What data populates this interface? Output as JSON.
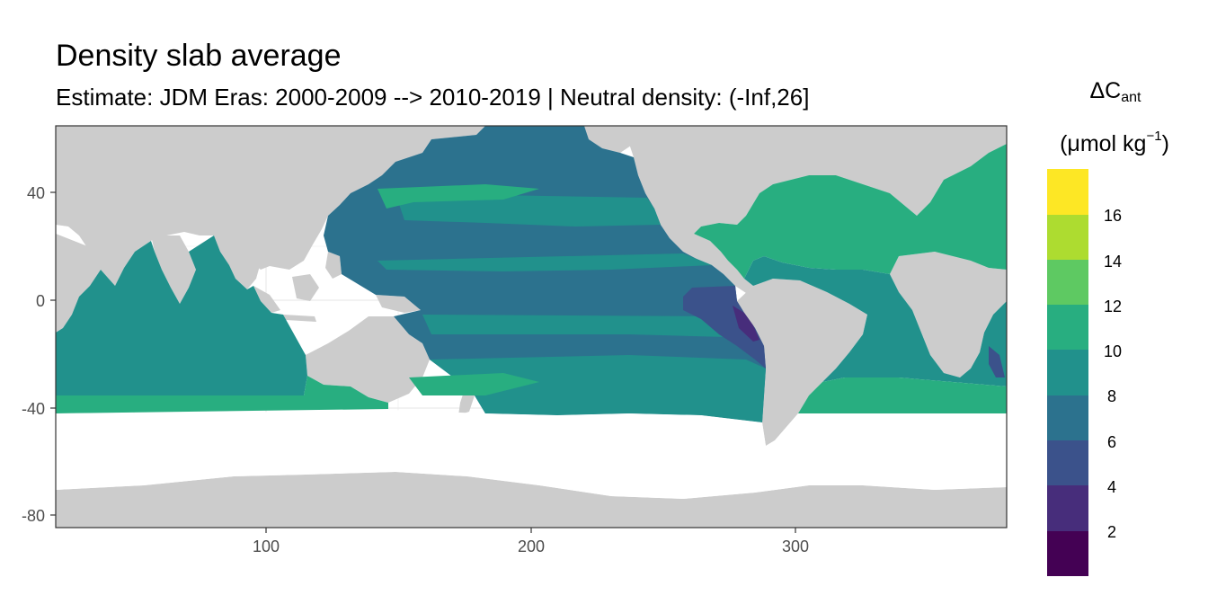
{
  "title": "Density slab average",
  "subtitle": "Estimate: JDM Eras: 2000-2009 --> 2010-2019 | Neutral density: (-Inf,26]",
  "legend": {
    "symbol": "ΔC",
    "subscript": "ant",
    "unit_prefix": "(μmol kg",
    "unit_sup": "−1",
    "unit_suffix": ")",
    "breaks": [
      "16",
      "14",
      "12",
      "10",
      "8",
      "6",
      "4",
      "2"
    ],
    "colors": [
      "#fde725",
      "#addc30",
      "#5ec962",
      "#28ae80",
      "#21918c",
      "#2c728e",
      "#3b528b",
      "#472d7b",
      "#440154"
    ]
  },
  "axes": {
    "x_ticks": [
      "100",
      "200",
      "300"
    ],
    "y_ticks": [
      "40",
      "0",
      "-40",
      "-80"
    ]
  },
  "colors": {
    "land": "#cccccc",
    "no_data": "#ffffff",
    "grid": "#ebebeb",
    "panel_border": "#333333"
  }
}
